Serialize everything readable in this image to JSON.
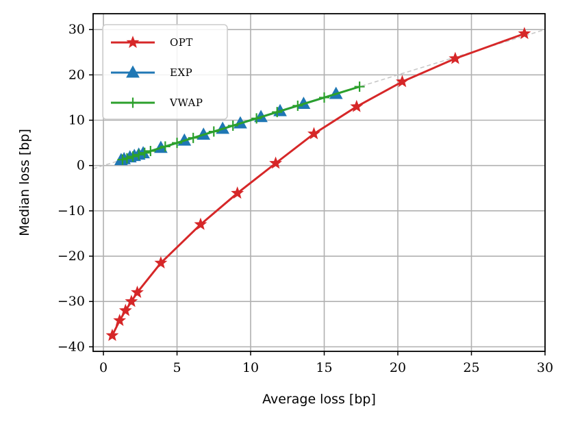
{
  "chart_data": {
    "type": "line",
    "xlabel": "Average loss [bp]",
    "ylabel": "Median loss [bp]",
    "xlim": [
      -0.7,
      30
    ],
    "ylim": [
      -41,
      33.5
    ],
    "grid": true,
    "legend_position": "top-left",
    "x_ticks": [
      0,
      5,
      10,
      15,
      20,
      25,
      30
    ],
    "y_ticks": [
      30,
      20,
      10,
      0,
      -10,
      -20,
      -30,
      -40
    ],
    "x_tick_labels": [
      "0",
      "5",
      "10",
      "15",
      "20",
      "25",
      "30"
    ],
    "y_tick_labels": [
      "30",
      "20",
      "10",
      "0",
      "−10",
      "−20",
      "−30",
      "−40"
    ],
    "reference_line": {
      "name": "identity",
      "x": [
        -0.7,
        30
      ],
      "y": [
        -0.7,
        30
      ],
      "color": "#c8c8c8",
      "style": "dashed"
    },
    "series": [
      {
        "name": "OPT",
        "color": "#d62728",
        "marker": "star",
        "x": [
          0.6,
          1.1,
          1.5,
          1.9,
          2.3,
          3.9,
          6.6,
          9.1,
          11.7,
          14.3,
          17.2,
          20.3,
          23.9,
          28.6
        ],
        "y": [
          -37.5,
          -34.2,
          -32.0,
          -30.0,
          -28.0,
          -21.5,
          -13.0,
          -6.1,
          0.5,
          7.0,
          13.0,
          18.5,
          23.6,
          29.1
        ]
      },
      {
        "name": "EXP",
        "color": "#1f77b4",
        "marker": "triangle",
        "x": [
          1.2,
          1.4,
          1.8,
          2.1,
          2.4,
          2.7,
          3.9,
          5.5,
          6.8,
          8.1,
          9.3,
          10.7,
          12.0,
          13.6,
          15.8
        ],
        "y": [
          1.2,
          1.4,
          1.8,
          2.1,
          2.4,
          2.7,
          3.9,
          5.5,
          6.8,
          8.1,
          9.3,
          10.7,
          12.0,
          13.6,
          15.8
        ]
      },
      {
        "name": "VWAP",
        "color": "#2ca02c",
        "marker": "plus",
        "x": [
          1.3,
          1.6,
          2.0,
          2.4,
          2.8,
          3.2,
          4.2,
          5.0,
          6.1,
          7.5,
          8.8,
          10.4,
          11.8,
          13.2,
          15.0,
          17.4
        ],
        "y": [
          1.3,
          1.6,
          2.0,
          2.4,
          2.8,
          3.2,
          4.2,
          5.0,
          6.1,
          7.5,
          8.8,
          10.4,
          11.8,
          13.2,
          15.0,
          17.4
        ]
      }
    ]
  }
}
